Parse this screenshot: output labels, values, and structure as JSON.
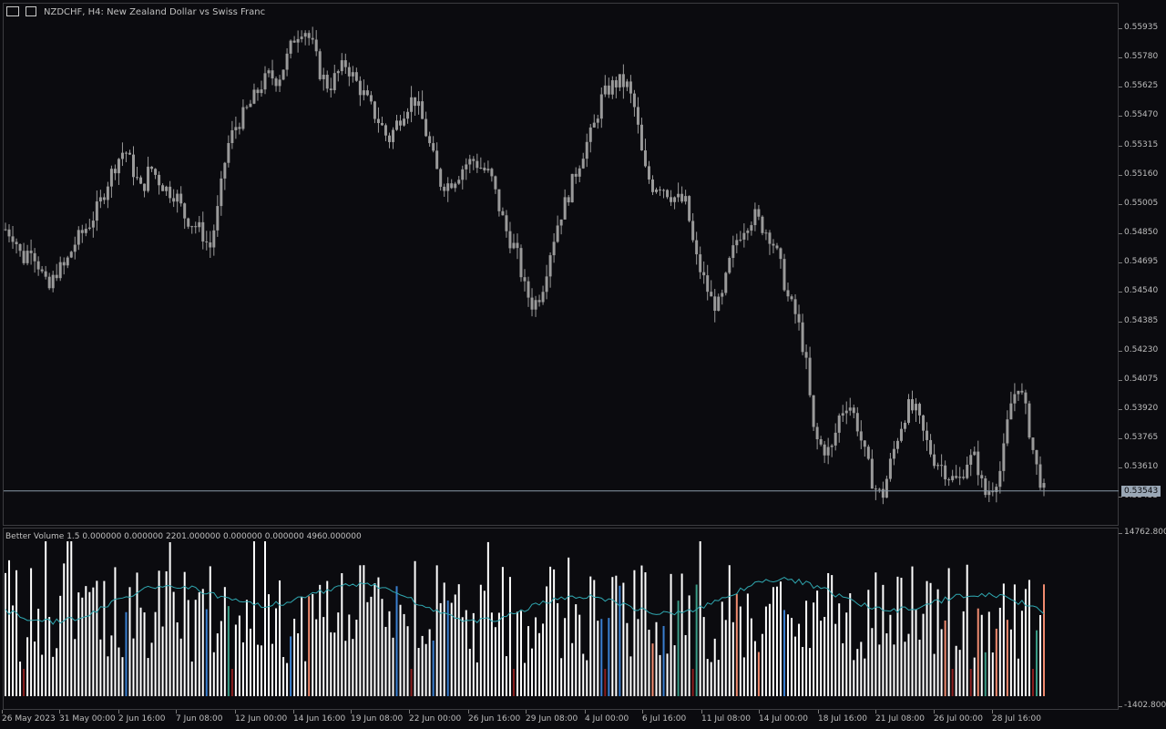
{
  "chart": {
    "symbol_line": "NZDCHF, H4:  New Zealand Dollar vs Swiss Franc",
    "current_price": "0.53543",
    "price_ticks": [
      "0.55935",
      "0.55780",
      "0.55625",
      "0.55470",
      "0.55315",
      "0.55160",
      "0.55005",
      "0.54850",
      "0.54695",
      "0.54540",
      "0.54385",
      "0.54230",
      "0.54075",
      "0.53920",
      "0.53765",
      "0.53610",
      "0.53455"
    ],
    "time_ticks": [
      "26 May 2023",
      "31 May 00:00",
      "2 Jun 16:00",
      "7 Jun 08:00",
      "12 Jun 00:00",
      "14 Jun 16:00",
      "19 Jun 08:00",
      "22 Jun 00:00",
      "26 Jun 16:00",
      "29 Jun 08:00",
      "4 Jul 00:00",
      "6 Jul 16:00",
      "11 Jul 08:00",
      "14 Jul 00:00",
      "18 Jul 16:00",
      "21 Jul 08:00",
      "26 Jul 00:00",
      "28 Jul 16:00"
    ],
    "colors": {
      "background": "#0b0b0f",
      "candle": "#9a9a9a",
      "grid": "#3c3c40",
      "price_line": "#8a9aa8"
    }
  },
  "indicator": {
    "label": "Better Volume 1.5 0.000000 0.000000 2201.000000 0.000000 0.000000 4960.000000",
    "scale_top": "14762.8000",
    "scale_bottom": "-1402.8000",
    "colors": {
      "normal": "#ffffff",
      "climax_up": "#f08b6f",
      "climax_down": "#3a7fd0",
      "churn": "#3a9c86",
      "low": "#8b1e1e",
      "ma": "#2fa7b0"
    }
  },
  "chart_data": {
    "type": "candlestick",
    "ylim": [
      0.5338,
      0.5601
    ],
    "close_path": [
      0.5487,
      0.5484,
      0.5471,
      0.5479,
      0.5468,
      0.5455,
      0.5466,
      0.5468,
      0.5479,
      0.5485,
      0.5491,
      0.5499,
      0.5511,
      0.5521,
      0.5528,
      0.5517,
      0.5506,
      0.5519,
      0.5512,
      0.5507,
      0.5505,
      0.5494,
      0.549,
      0.5486,
      0.5477,
      0.5498,
      0.5528,
      0.5539,
      0.5545,
      0.5552,
      0.556,
      0.5565,
      0.5563,
      0.5573,
      0.5585,
      0.559,
      0.5581,
      0.5566,
      0.5559,
      0.5566,
      0.5571,
      0.5563,
      0.5556,
      0.5548,
      0.5541,
      0.5532,
      0.5541,
      0.5549,
      0.5554,
      0.5542,
      0.5527,
      0.5511,
      0.551,
      0.5514,
      0.552,
      0.5522,
      0.5518,
      0.5514,
      0.5498,
      0.5484,
      0.5476,
      0.5457,
      0.5448,
      0.5456,
      0.5476,
      0.5492,
      0.5503,
      0.5516,
      0.5528,
      0.5537,
      0.5553,
      0.5559,
      0.5562,
      0.556,
      0.5547,
      0.5518,
      0.5509,
      0.551,
      0.5505,
      0.5502,
      0.55,
      0.5474,
      0.5462,
      0.545,
      0.5448,
      0.5469,
      0.5483,
      0.549,
      0.5494,
      0.5488,
      0.5483,
      0.5469,
      0.5451,
      0.5442,
      0.5421,
      0.5382,
      0.5376,
      0.5374,
      0.5393,
      0.54,
      0.5389,
      0.5372,
      0.5357,
      0.5351,
      0.5369,
      0.5385,
      0.5397,
      0.5394,
      0.5381,
      0.5371,
      0.5367,
      0.5361,
      0.5359,
      0.537,
      0.5371,
      0.5352,
      0.5357,
      0.5366,
      0.5397,
      0.5409,
      0.5392,
      0.5368,
      0.5354
    ],
    "volume_ylim": [
      -1402.8,
      14762.8
    ],
    "volume_ma_level": 7800
  }
}
